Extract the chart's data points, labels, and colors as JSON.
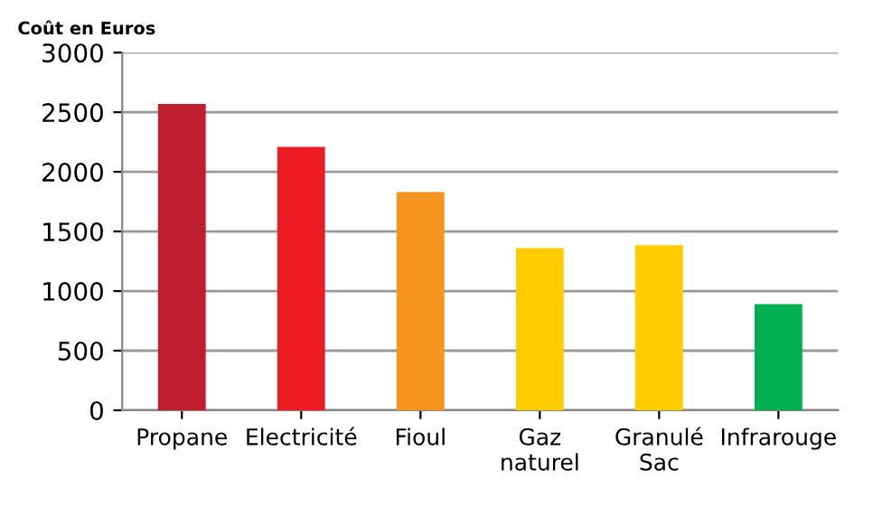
{
  "chart_data": {
    "type": "bar",
    "ylabel": "Coût en Euros",
    "categories": [
      "Propane",
      "Electricité",
      "Fioul",
      "Gaz\nnaturel",
      "Granulé\nSac",
      "Infrarouge"
    ],
    "values": [
      2570,
      2210,
      1830,
      1360,
      1385,
      890
    ],
    "colors": [
      "#be1e2d",
      "#ed1c24",
      "#f7941d",
      "#ffcc00",
      "#ffcc00",
      "#00b050"
    ],
    "ylim": [
      0,
      3000
    ],
    "yticks": [
      0,
      500,
      1000,
      1500,
      2000,
      2500,
      3000
    ],
    "grid": "y"
  }
}
